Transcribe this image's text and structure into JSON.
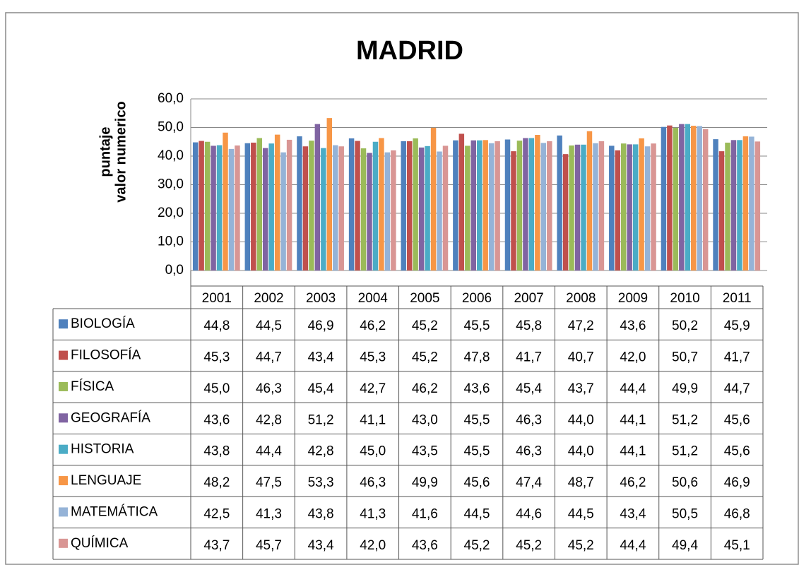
{
  "chart_data": {
    "type": "bar",
    "title": "MADRID",
    "y_label": [
      "puntaje",
      "valor numerico"
    ],
    "categories": [
      "2001",
      "2002",
      "2003",
      "2004",
      "2005",
      "2006",
      "2007",
      "2008",
      "2009",
      "2010",
      "2011"
    ],
    "ylim": [
      0,
      60
    ],
    "yticks": [
      {
        "value": 0,
        "label": "0,0"
      },
      {
        "value": 10,
        "label": "10,0"
      },
      {
        "value": 20,
        "label": "20,0"
      },
      {
        "value": 30,
        "label": "30,0"
      },
      {
        "value": 40,
        "label": "40,0"
      },
      {
        "value": 50,
        "label": "50,0"
      },
      {
        "value": 60,
        "label": "60,0"
      }
    ],
    "grid": true,
    "series": [
      {
        "name": "BIOLOGÍA",
        "color": "#4f81bd",
        "values": [
          44.8,
          44.5,
          46.9,
          46.2,
          45.2,
          45.5,
          45.8,
          47.2,
          43.6,
          50.2,
          45.9
        ],
        "value_labels": [
          "44,8",
          "44,5",
          "46,9",
          "46,2",
          "45,2",
          "45,5",
          "45,8",
          "47,2",
          "43,6",
          "50,2",
          "45,9"
        ]
      },
      {
        "name": "FILOSOFÍA",
        "color": "#c0504d",
        "values": [
          45.3,
          44.7,
          43.4,
          45.3,
          45.2,
          47.8,
          41.7,
          40.7,
          42.0,
          50.7,
          41.7
        ],
        "value_labels": [
          "45,3",
          "44,7",
          "43,4",
          "45,3",
          "45,2",
          "47,8",
          "41,7",
          "40,7",
          "42,0",
          "50,7",
          "41,7"
        ]
      },
      {
        "name": "FÍSICA",
        "color": "#9bbb59",
        "values": [
          45.0,
          46.3,
          45.4,
          42.7,
          46.2,
          43.6,
          45.4,
          43.7,
          44.4,
          49.9,
          44.7
        ],
        "value_labels": [
          "45,0",
          "46,3",
          "45,4",
          "42,7",
          "46,2",
          "43,6",
          "45,4",
          "43,7",
          "44,4",
          "49,9",
          "44,7"
        ]
      },
      {
        "name": "GEOGRAFÍA",
        "color": "#8064a2",
        "values": [
          43.6,
          42.8,
          51.2,
          41.1,
          43.0,
          45.5,
          46.3,
          44.0,
          44.1,
          51.2,
          45.6
        ],
        "value_labels": [
          "43,6",
          "42,8",
          "51,2",
          "41,1",
          "43,0",
          "45,5",
          "46,3",
          "44,0",
          "44,1",
          "51,2",
          "45,6"
        ]
      },
      {
        "name": "HISTORIA",
        "color": "#4bacc6",
        "values": [
          43.8,
          44.4,
          42.8,
          45.0,
          43.5,
          45.5,
          46.3,
          44.0,
          44.1,
          51.2,
          45.6
        ],
        "value_labels": [
          "43,8",
          "44,4",
          "42,8",
          "45,0",
          "43,5",
          "45,5",
          "46,3",
          "44,0",
          "44,1",
          "51,2",
          "45,6"
        ]
      },
      {
        "name": "LENGUAJE",
        "color": "#f79646",
        "values": [
          48.2,
          47.5,
          53.3,
          46.3,
          49.9,
          45.6,
          47.4,
          48.7,
          46.2,
          50.6,
          46.9
        ],
        "value_labels": [
          "48,2",
          "47,5",
          "53,3",
          "46,3",
          "49,9",
          "45,6",
          "47,4",
          "48,7",
          "46,2",
          "50,6",
          "46,9"
        ]
      },
      {
        "name": "MATEMÁTICA",
        "color": "#95b3d7",
        "values": [
          42.5,
          41.3,
          43.8,
          41.3,
          41.6,
          44.5,
          44.6,
          44.5,
          43.4,
          50.5,
          46.8
        ],
        "value_labels": [
          "42,5",
          "41,3",
          "43,8",
          "41,3",
          "41,6",
          "44,5",
          "44,6",
          "44,5",
          "43,4",
          "50,5",
          "46,8"
        ]
      },
      {
        "name": "QUÍMICA",
        "color": "#d99694",
        "values": [
          43.7,
          45.7,
          43.4,
          42.0,
          43.6,
          45.2,
          45.2,
          45.2,
          44.4,
          49.4,
          45.1
        ],
        "value_labels": [
          "43,7",
          "45,7",
          "43,4",
          "42,0",
          "43,6",
          "45,2",
          "45,2",
          "45,2",
          "44,4",
          "49,4",
          "45,1"
        ]
      }
    ]
  }
}
